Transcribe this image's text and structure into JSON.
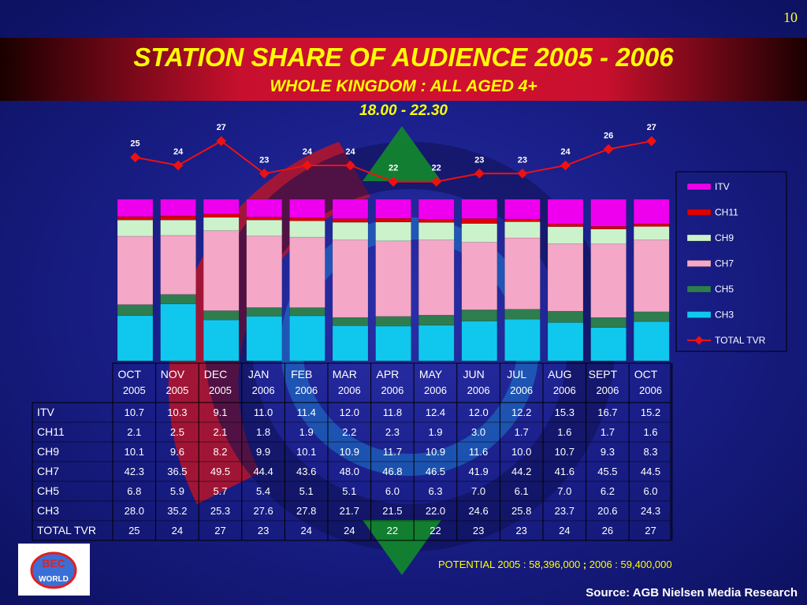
{
  "page_number": "10",
  "title": "STATION SHARE OF AUDIENCE 2005 - 2006",
  "subtitle": "WHOLE KINGDOM : ALL AGED 4+",
  "time_range": "18.00 - 22.30",
  "footer": {
    "potential_a": "POTENTIAL 2005 : 58,396,000",
    "potential_sep": " ; ",
    "potential_b": "2006 : 59,400,000",
    "source": "Source: AGB Nielsen Media Research"
  },
  "logo": {
    "icon": "bec-world-logo-icon",
    "text": "BEC WORLD"
  },
  "colors": {
    "ITV": "#ee00ee",
    "CH11": "#dd0000",
    "CH9": "#ccf2cc",
    "CH7": "#f4a7c7",
    "CH5": "#2e7d4f",
    "CH3": "#10c8ee",
    "TOTAL TVR": "#ee1111",
    "title": "#ffff00",
    "background": "#1a1f8a"
  },
  "chart_data": {
    "type": "bar",
    "stacked": true,
    "categories": [
      {
        "month": "OCT",
        "year": "2005"
      },
      {
        "month": "NOV",
        "year": "2005"
      },
      {
        "month": "DEC",
        "year": "2005"
      },
      {
        "month": "JAN",
        "year": "2006"
      },
      {
        "month": "FEB",
        "year": "2006"
      },
      {
        "month": "MAR",
        "year": "2006"
      },
      {
        "month": "APR",
        "year": "2006"
      },
      {
        "month": "MAY",
        "year": "2006"
      },
      {
        "month": "JUN",
        "year": "2006"
      },
      {
        "month": "JUL",
        "year": "2006"
      },
      {
        "month": "AUG",
        "year": "2006"
      },
      {
        "month": "SEPT",
        "year": "2006"
      },
      {
        "month": "OCT",
        "year": "2006"
      }
    ],
    "series": [
      {
        "name": "ITV",
        "values": [
          "10.7",
          "10.3",
          "9.1",
          "11.0",
          "11.4",
          "12.0",
          "11.8",
          "12.4",
          "12.0",
          "12.2",
          "15.3",
          "16.7",
          "15.2"
        ]
      },
      {
        "name": "CH11",
        "values": [
          "2.1",
          "2.5",
          "2.1",
          "1.8",
          "1.9",
          "2.2",
          "2.3",
          "1.9",
          "3.0",
          "1.7",
          "1.6",
          "1.7",
          "1.6"
        ]
      },
      {
        "name": "CH9",
        "values": [
          "10.1",
          "9.6",
          "8.2",
          "9.9",
          "10.1",
          "10.9",
          "11.7",
          "10.9",
          "11.6",
          "10.0",
          "10.7",
          "9.3",
          "8.3"
        ]
      },
      {
        "name": "CH7",
        "values": [
          "42.3",
          "36.5",
          "49.5",
          "44.4",
          "43.6",
          "48.0",
          "46.8",
          "46.5",
          "41.9",
          "44.2",
          "41.6",
          "45.5",
          "44.5"
        ]
      },
      {
        "name": "CH5",
        "values": [
          "6.8",
          "5.9",
          "5.7",
          "5.4",
          "5.1",
          "5.1",
          "6.0",
          "6.3",
          "7.0",
          "6.1",
          "7.0",
          "6.2",
          "6.0"
        ]
      },
      {
        "name": "CH3",
        "values": [
          "28.0",
          "35.2",
          "25.3",
          "27.6",
          "27.8",
          "21.7",
          "21.5",
          "22.0",
          "24.6",
          "25.8",
          "23.7",
          "20.6",
          "24.3"
        ]
      }
    ],
    "line_series": {
      "name": "TOTAL TVR",
      "values": [
        "25",
        "24",
        "27",
        "23",
        "24",
        "24",
        "22",
        "22",
        "23",
        "23",
        "24",
        "26",
        "27"
      ]
    },
    "stack_order_bottom_to_top": [
      "CH3",
      "CH5",
      "CH7",
      "CH9",
      "CH11",
      "ITV"
    ],
    "legend_order": [
      "ITV",
      "CH11",
      "CH9",
      "CH7",
      "CH5",
      "CH3",
      "TOTAL TVR"
    ],
    "legend_position": "right",
    "table_rows": [
      "ITV",
      "CH11",
      "CH9",
      "CH7",
      "CH5",
      "CH3",
      "TOTAL TVR"
    ],
    "table_row_labels": {
      "TOTAL TVR": "TOTAL TVR"
    },
    "ylim": [
      0,
      100
    ],
    "grid": false
  }
}
